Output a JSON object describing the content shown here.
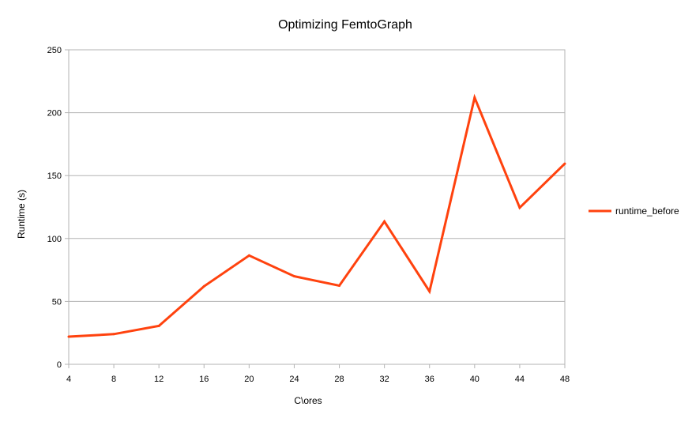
{
  "chart_data": {
    "type": "line",
    "title": "Optimizing FemtoGraph",
    "xlabel": "C\\ores",
    "ylabel": "Runtime (s)",
    "x": [
      4,
      8,
      12,
      16,
      20,
      24,
      28,
      32,
      36,
      40,
      44,
      48
    ],
    "ylim": [
      0,
      250
    ],
    "yticks": [
      0,
      50,
      100,
      150,
      200,
      250
    ],
    "grid": true,
    "legend_position": "right",
    "series": [
      {
        "name": "runtime_before",
        "color": "#ff420e",
        "values": [
          22,
          24,
          30.5,
          62,
          86.5,
          70,
          62.5,
          113.5,
          58,
          212,
          124.5,
          159.5
        ]
      }
    ]
  }
}
